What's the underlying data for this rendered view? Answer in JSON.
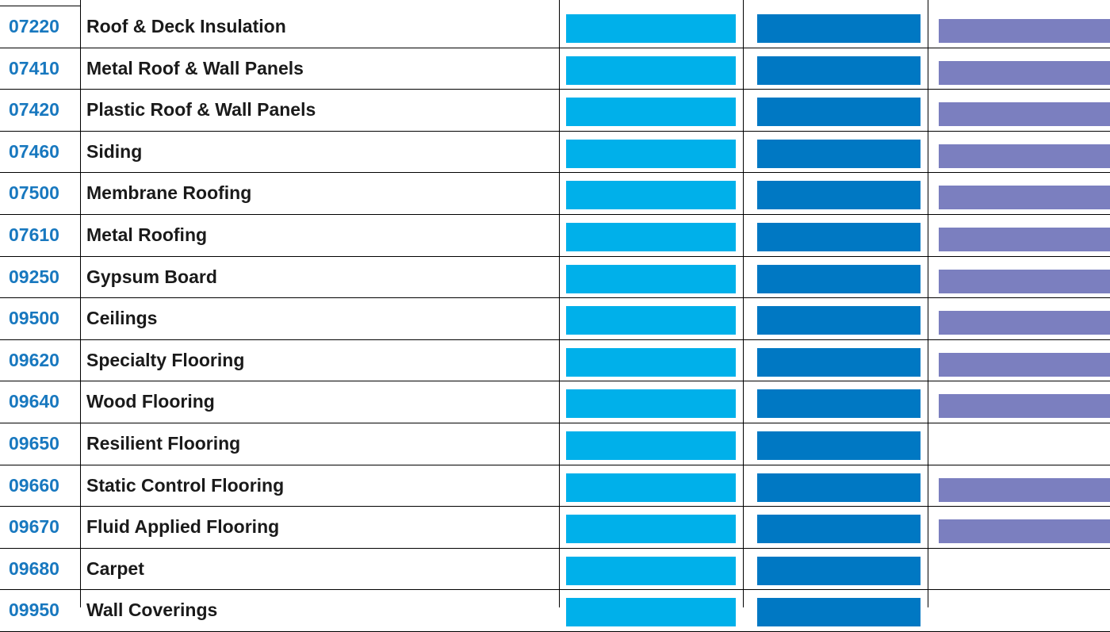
{
  "colors": {
    "code_text": "#1878bf",
    "name_text": "#1a1a1a",
    "grid_line": "#000000",
    "column_1_bar": "#00b0ea",
    "column_2_bar": "#0078c3",
    "column_3_bar": "#7b7fbf"
  },
  "rows": [
    {
      "code": "07220",
      "name": "Roof & Deck Insulation",
      "marks": [
        true,
        true,
        true
      ]
    },
    {
      "code": "07410",
      "name": "Metal Roof & Wall Panels",
      "marks": [
        true,
        true,
        true
      ]
    },
    {
      "code": "07420",
      "name": "Plastic Roof & Wall Panels",
      "marks": [
        true,
        true,
        true
      ]
    },
    {
      "code": "07460",
      "name": "Siding",
      "marks": [
        true,
        true,
        true
      ]
    },
    {
      "code": "07500",
      "name": "Membrane Roofing",
      "marks": [
        true,
        true,
        true
      ]
    },
    {
      "code": "07610",
      "name": "Metal Roofing",
      "marks": [
        true,
        true,
        true
      ]
    },
    {
      "code": "09250",
      "name": "Gypsum Board",
      "marks": [
        true,
        true,
        true
      ]
    },
    {
      "code": "09500",
      "name": "Ceilings",
      "marks": [
        true,
        true,
        true
      ]
    },
    {
      "code": "09620",
      "name": "Specialty Flooring",
      "marks": [
        true,
        true,
        true
      ]
    },
    {
      "code": "09640",
      "name": "Wood Flooring",
      "marks": [
        true,
        true,
        true
      ]
    },
    {
      "code": "09650",
      "name": "Resilient Flooring",
      "marks": [
        true,
        true,
        false
      ]
    },
    {
      "code": "09660",
      "name": "Static Control Flooring",
      "marks": [
        true,
        true,
        true
      ]
    },
    {
      "code": "09670",
      "name": "Fluid Applied Flooring",
      "marks": [
        true,
        true,
        true
      ]
    },
    {
      "code": "09680",
      "name": "Carpet",
      "marks": [
        true,
        true,
        false
      ]
    },
    {
      "code": "09950",
      "name": "Wall Coverings",
      "marks": [
        true,
        true,
        false
      ]
    }
  ]
}
